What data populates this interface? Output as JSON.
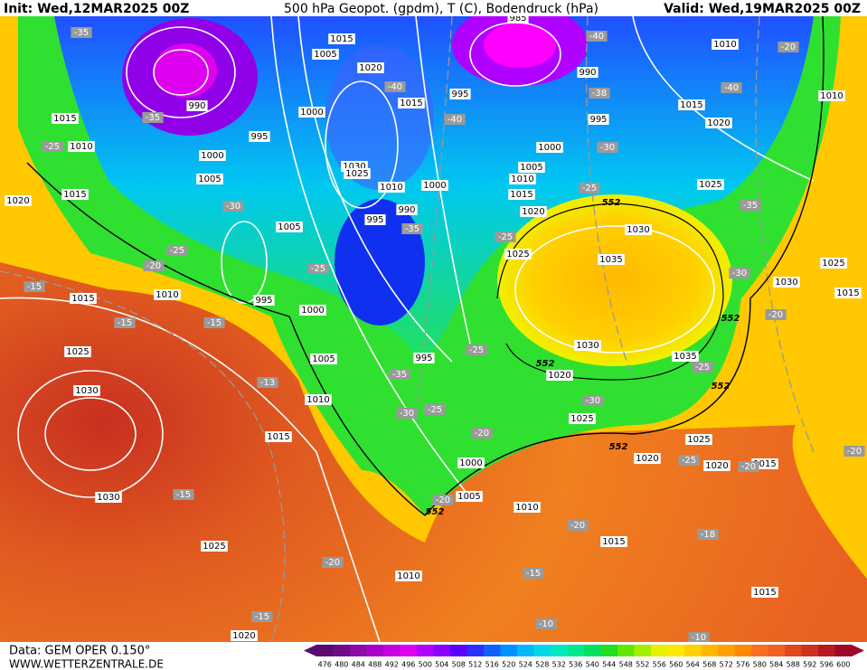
{
  "header": {
    "init": "Init: Wed,12MAR2025 00Z",
    "title": "500 hPa Geopot. (gpdm), T (C), Bodendruck (hPa)",
    "valid": "Valid: Wed,19MAR2025 00Z"
  },
  "footer": {
    "source": "Data: GEM OPER 0.150°",
    "website": "WWW.WETTERZENTRALE.DE"
  },
  "colorbar": {
    "levels": [
      476,
      480,
      484,
      488,
      492,
      496,
      500,
      504,
      508,
      512,
      516,
      520,
      524,
      528,
      532,
      536,
      540,
      544,
      548,
      552,
      556,
      560,
      564,
      568,
      572,
      576,
      580,
      584,
      588,
      592,
      596,
      600
    ],
    "colors": [
      "#5a0a6e",
      "#6e0a8a",
      "#8c0aa8",
      "#a800c8",
      "#c800e0",
      "#e000f0",
      "#b000ff",
      "#8a00ff",
      "#5a00ff",
      "#2a30ff",
      "#1060ff",
      "#0090ff",
      "#00b8f8",
      "#00d8e8",
      "#00e8c0",
      "#00e890",
      "#00e060",
      "#20e020",
      "#60e800",
      "#a0f000",
      "#e8f000",
      "#ffe800",
      "#ffd000",
      "#ffb800",
      "#ffa000",
      "#ff8800",
      "#f87020",
      "#f06020",
      "#e04820",
      "#d03020",
      "#b81820",
      "#a00828"
    ]
  },
  "isobar_labels": [
    "1015",
    "1005",
    "1020",
    "1000",
    "995",
    "1000",
    "1005",
    "1010",
    "1015",
    "990",
    "1015",
    "1020",
    "1010",
    "1015",
    "1025",
    "1030",
    "1030",
    "995",
    "1000",
    "1005",
    "1010",
    "1015",
    "1025",
    "1020",
    "1030",
    "1025",
    "1010",
    "1000",
    "995",
    "990",
    "1005",
    "1015",
    "995",
    "985",
    "990",
    "995",
    "1000",
    "1005",
    "1010",
    "1015",
    "1020",
    "1025",
    "1030",
    "1035",
    "1030",
    "1035",
    "1020",
    "1025",
    "1025",
    "1020",
    "1020",
    "1015",
    "995",
    "1000",
    "1005",
    "1010",
    "1015",
    "1010",
    "1015",
    "1010",
    "1015",
    "1020",
    "1025",
    "1030",
    "1025",
    "1015",
    "1010"
  ],
  "temperature_labels": [
    "-35",
    "-35",
    "-25",
    "-30",
    "-25",
    "-20",
    "-15",
    "-15",
    "-15",
    "-13",
    "-15",
    "-20",
    "-15",
    "-40",
    "-40",
    "-35",
    "-25",
    "-35",
    "-30",
    "-25",
    "-20",
    "-20",
    "-25",
    "-30",
    "-25",
    "-25",
    "-30",
    "-20",
    "-25",
    "-30",
    "-25",
    "-20",
    "-40",
    "-38",
    "-40",
    "-35",
    "-20",
    "-20",
    "-18",
    "-15",
    "-10",
    "-10",
    "-20"
  ],
  "contour_552_labels": [
    "552",
    "552",
    "552",
    "552",
    "552",
    "552"
  ]
}
